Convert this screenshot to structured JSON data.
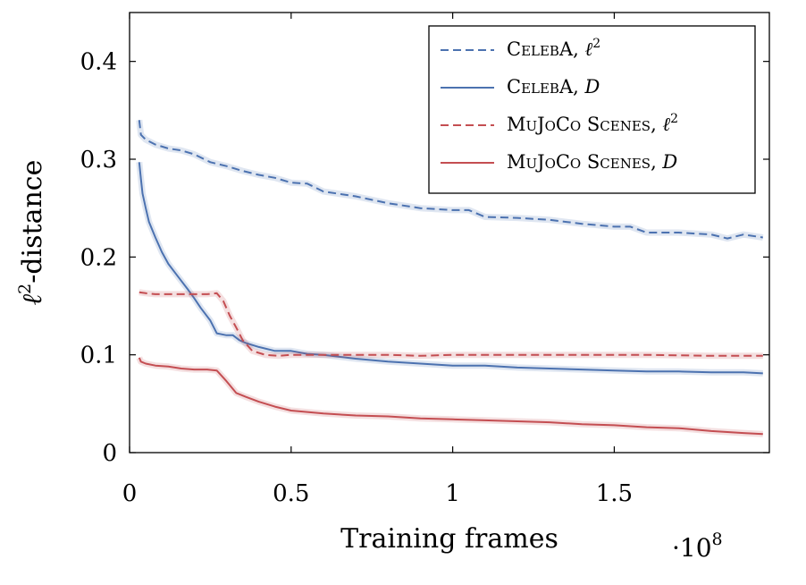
{
  "chart_data": {
    "type": "line",
    "xlabel": "Training frames",
    "x_scale_label": "·10",
    "x_scale_exponent": "8",
    "ylabel_main": "ℓ",
    "ylabel_sup": "2",
    "ylabel_rest": "-distance",
    "xlim": [
      0,
      1.98
    ],
    "ylim": [
      0,
      0.45
    ],
    "x_ticks": [
      {
        "value": 0,
        "label": "0"
      },
      {
        "value": 0.5,
        "label": "0.5"
      },
      {
        "value": 1,
        "label": "1"
      },
      {
        "value": 1.5,
        "label": "1.5"
      }
    ],
    "y_ticks": [
      {
        "value": 0,
        "label": "0"
      },
      {
        "value": 0.1,
        "label": "0.1"
      },
      {
        "value": 0.2,
        "label": "0.2"
      },
      {
        "value": 0.3,
        "label": "0.3"
      },
      {
        "value": 0.4,
        "label": "0.4"
      }
    ],
    "legend_position": "top-right",
    "grid": false,
    "series": [
      {
        "name": "CelebA, ℓ²",
        "legend_main": "CelebA, ",
        "legend_var": "ℓ",
        "legend_sup": "2",
        "color": "#4c72b0",
        "style": "dashed",
        "x": [
          0.03,
          0.035,
          0.05,
          0.08,
          0.12,
          0.16,
          0.2,
          0.25,
          0.3,
          0.35,
          0.4,
          0.45,
          0.5,
          0.55,
          0.6,
          0.7,
          0.8,
          0.9,
          1.0,
          1.05,
          1.1,
          1.2,
          1.3,
          1.4,
          1.5,
          1.55,
          1.6,
          1.7,
          1.8,
          1.85,
          1.9,
          1.96
        ],
        "y": [
          0.34,
          0.325,
          0.32,
          0.315,
          0.311,
          0.309,
          0.305,
          0.297,
          0.293,
          0.288,
          0.284,
          0.281,
          0.276,
          0.275,
          0.267,
          0.262,
          0.255,
          0.25,
          0.248,
          0.248,
          0.241,
          0.24,
          0.238,
          0.234,
          0.231,
          0.231,
          0.225,
          0.225,
          0.223,
          0.219,
          0.223,
          0.22
        ]
      },
      {
        "name": "CelebA, D",
        "legend_main": "CelebA, ",
        "legend_var": "D",
        "legend_sup": "",
        "color": "#4c72b0",
        "style": "solid",
        "x": [
          0.03,
          0.035,
          0.04,
          0.05,
          0.06,
          0.08,
          0.1,
          0.12,
          0.15,
          0.18,
          0.2,
          0.22,
          0.25,
          0.27,
          0.3,
          0.32,
          0.34,
          0.36,
          0.4,
          0.45,
          0.5,
          0.55,
          0.6,
          0.7,
          0.8,
          0.9,
          1.0,
          1.1,
          1.2,
          1.3,
          1.4,
          1.5,
          1.6,
          1.7,
          1.8,
          1.9,
          1.96
        ],
        "y": [
          0.297,
          0.28,
          0.265,
          0.25,
          0.236,
          0.22,
          0.205,
          0.193,
          0.18,
          0.167,
          0.158,
          0.148,
          0.135,
          0.122,
          0.12,
          0.12,
          0.115,
          0.112,
          0.108,
          0.104,
          0.104,
          0.101,
          0.1,
          0.096,
          0.093,
          0.091,
          0.089,
          0.089,
          0.087,
          0.086,
          0.085,
          0.084,
          0.083,
          0.083,
          0.082,
          0.082,
          0.081
        ]
      },
      {
        "name": "MuJoCo Scenes, ℓ²",
        "legend_main": "MuJoCo Scenes, ",
        "legend_var": "ℓ",
        "legend_sup": "2",
        "color": "#c44e52",
        "style": "dashed",
        "x": [
          0.03,
          0.05,
          0.08,
          0.12,
          0.16,
          0.2,
          0.24,
          0.27,
          0.29,
          0.31,
          0.33,
          0.35,
          0.38,
          0.42,
          0.46,
          0.5,
          0.6,
          0.7,
          0.8,
          0.9,
          1.0,
          1.2,
          1.4,
          1.6,
          1.8,
          1.96
        ],
        "y": [
          0.164,
          0.163,
          0.162,
          0.162,
          0.162,
          0.162,
          0.162,
          0.163,
          0.155,
          0.14,
          0.128,
          0.115,
          0.104,
          0.1,
          0.099,
          0.1,
          0.1,
          0.1,
          0.1,
          0.099,
          0.1,
          0.1,
          0.1,
          0.1,
          0.099,
          0.099
        ]
      },
      {
        "name": "MuJoCo Scenes, D",
        "legend_main": "MuJoCo Scenes, ",
        "legend_var": "D",
        "legend_sup": "",
        "color": "#c44e52",
        "style": "solid",
        "x": [
          0.03,
          0.035,
          0.05,
          0.08,
          0.12,
          0.16,
          0.2,
          0.24,
          0.27,
          0.3,
          0.33,
          0.36,
          0.4,
          0.45,
          0.5,
          0.6,
          0.7,
          0.8,
          0.9,
          1.0,
          1.1,
          1.2,
          1.3,
          1.4,
          1.5,
          1.6,
          1.7,
          1.8,
          1.9,
          1.96
        ],
        "y": [
          0.097,
          0.093,
          0.091,
          0.089,
          0.088,
          0.086,
          0.085,
          0.085,
          0.084,
          0.073,
          0.061,
          0.057,
          0.052,
          0.047,
          0.043,
          0.04,
          0.038,
          0.037,
          0.035,
          0.034,
          0.033,
          0.032,
          0.031,
          0.029,
          0.028,
          0.026,
          0.025,
          0.022,
          0.02,
          0.019
        ]
      }
    ]
  }
}
